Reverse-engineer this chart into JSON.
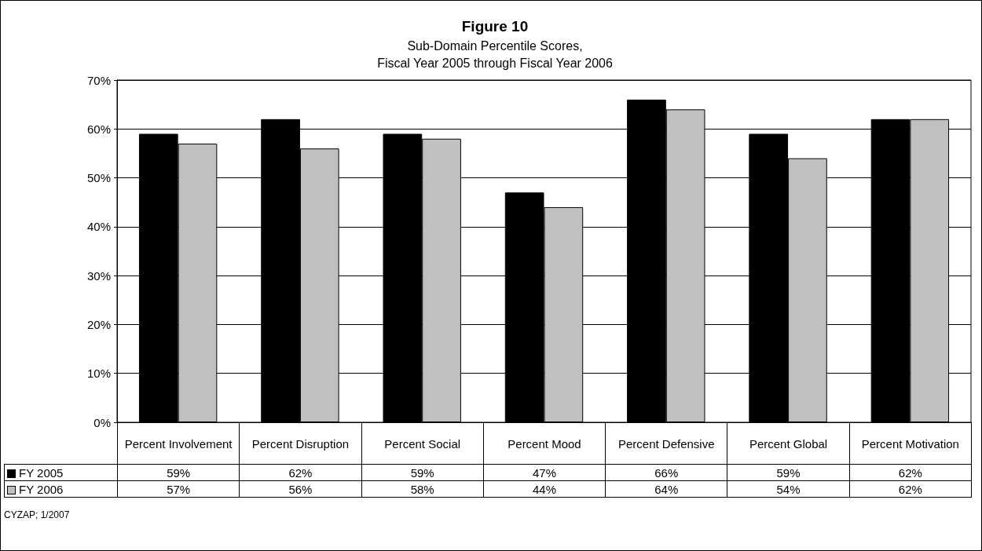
{
  "chart_data": {
    "type": "bar",
    "title": "Figure 10",
    "subtitle": "Sub-Domain Percentile Scores,\nFiscal Year 2005 through Fiscal Year 2006",
    "categories": [
      "Percent Involvement",
      "Percent Disruption",
      "Percent Social",
      "Percent Mood",
      "Percent Defensive",
      "Percent Global",
      "Percent Motivation"
    ],
    "series": [
      {
        "name": "FY 2005",
        "color": "#000000",
        "values": [
          59,
          62,
          59,
          47,
          66,
          59,
          62
        ],
        "value_labels": [
          "59%",
          "62%",
          "59%",
          "47%",
          "66%",
          "59%",
          "62%"
        ]
      },
      {
        "name": "FY 2006",
        "color": "#c0c0c0",
        "values": [
          57,
          56,
          58,
          44,
          64,
          54,
          62
        ],
        "value_labels": [
          "57%",
          "56%",
          "58%",
          "44%",
          "64%",
          "54%",
          "62%"
        ]
      }
    ],
    "ylim": [
      0,
      70
    ],
    "yticks": [
      {
        "value": 0,
        "label": "0%"
      },
      {
        "value": 10,
        "label": "10%"
      },
      {
        "value": 20,
        "label": "20%"
      },
      {
        "value": 30,
        "label": "30%"
      },
      {
        "value": 40,
        "label": "40%"
      },
      {
        "value": 50,
        "label": "50%"
      },
      {
        "value": 60,
        "label": "60%"
      },
      {
        "value": 70,
        "label": "70%"
      }
    ],
    "grid": "y",
    "legend": "bottom",
    "annotations": [
      "CYZAP; 1/2007"
    ]
  }
}
